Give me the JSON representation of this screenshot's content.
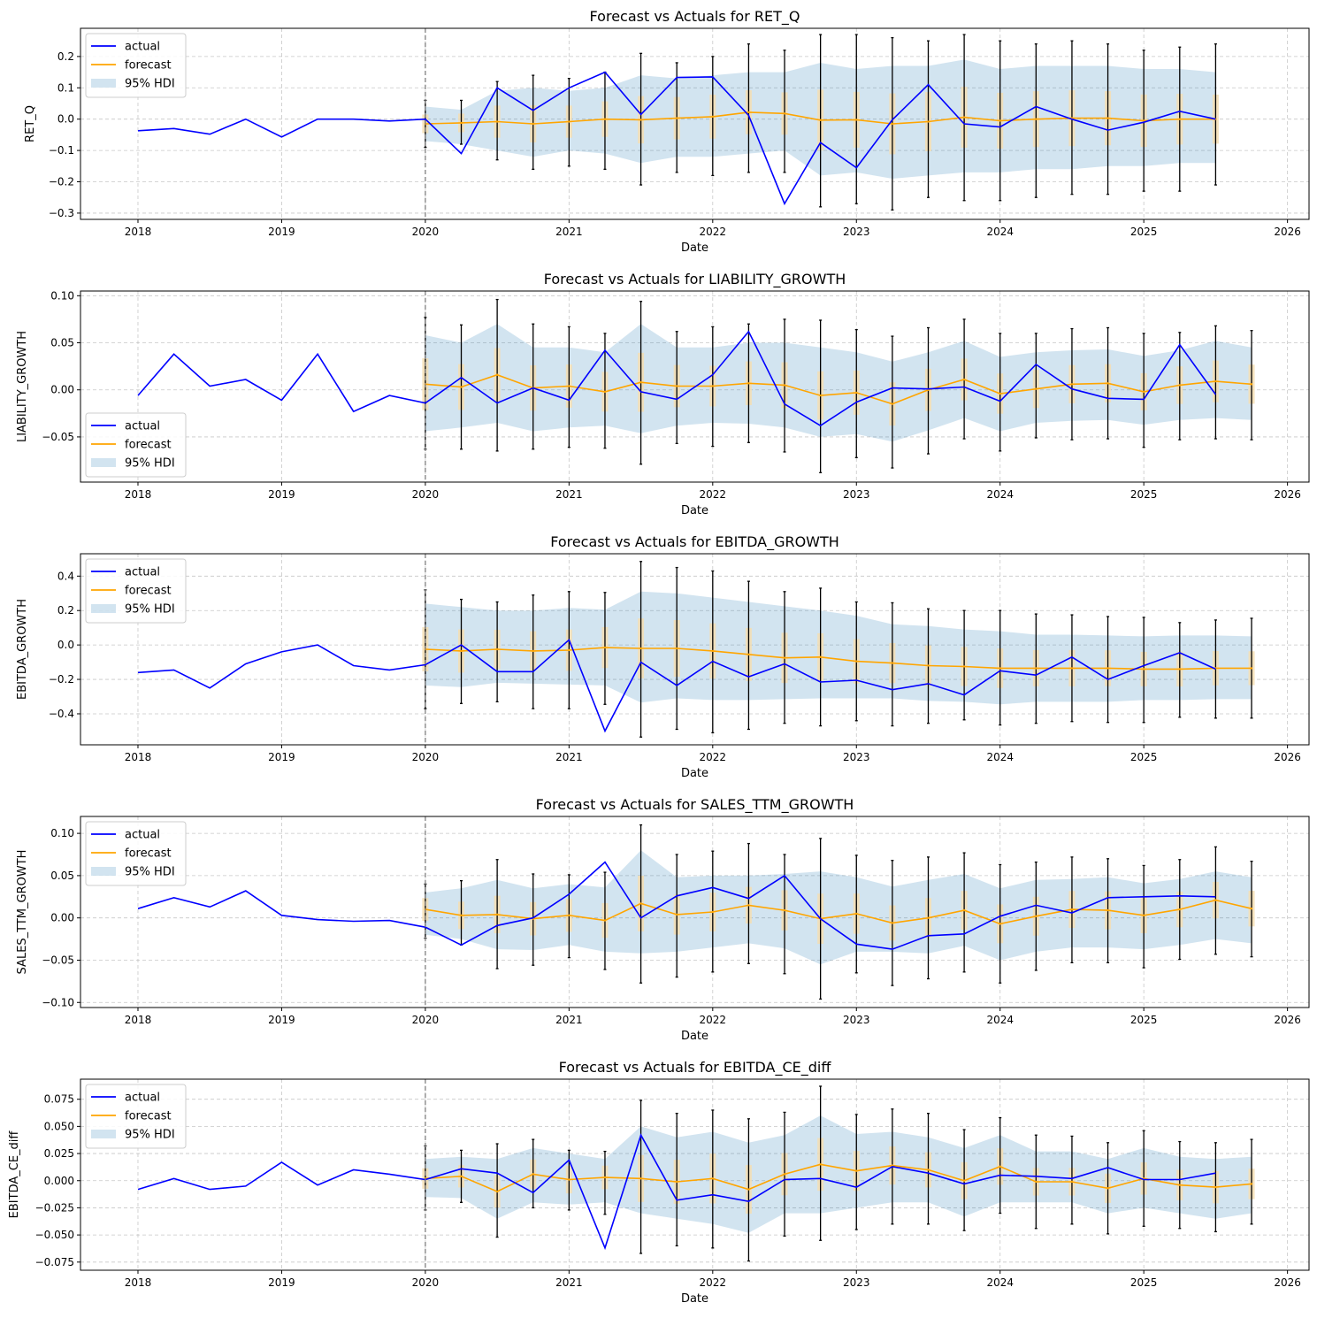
{
  "chart_data": [
    {
      "type": "line",
      "title": "Forecast vs Actuals for RET_Q",
      "xlabel": "Date",
      "ylabel": "RET_Q",
      "xlim": [
        2017.6,
        2026.15
      ],
      "ylim": [
        -0.32,
        0.29
      ],
      "yticks": [
        -0.3,
        -0.2,
        -0.1,
        0.0,
        0.1,
        0.2
      ],
      "ytick_labels": [
        "−0.3",
        "−0.2",
        "−0.1",
        "0.0",
        "0.1",
        "0.2"
      ],
      "legend_position": "top-left",
      "actual": [
        -0.037,
        -0.03,
        -0.048,
        0.0,
        -0.057,
        0.0,
        0.0,
        -0.006,
        0.0,
        -0.11,
        0.1,
        0.028,
        0.1,
        0.15,
        0.015,
        0.133,
        0.135,
        0.012,
        -0.27,
        -0.075,
        -0.155,
        -0.002,
        0.11,
        -0.015,
        -0.025,
        0.04,
        0.0,
        -0.035,
        -0.01,
        0.025,
        0.0
      ],
      "forecast": [
        -0.015,
        -0.012,
        -0.008,
        -0.015,
        -0.008,
        0.0,
        -0.002,
        0.003,
        0.008,
        0.022,
        0.018,
        -0.003,
        -0.002,
        -0.015,
        -0.008,
        0.006,
        -0.005,
        0.0,
        0.003,
        0.003,
        -0.005,
        0.0,
        0.0
      ],
      "hdi_low": [
        -0.07,
        -0.08,
        -0.1,
        -0.12,
        -0.1,
        -0.11,
        -0.14,
        -0.12,
        -0.12,
        -0.11,
        -0.1,
        -0.18,
        -0.17,
        -0.19,
        -0.18,
        -0.17,
        -0.17,
        -0.16,
        -0.16,
        -0.15,
        -0.15,
        -0.14,
        -0.14
      ],
      "hdi_high": [
        0.04,
        0.03,
        0.09,
        0.1,
        0.09,
        0.1,
        0.14,
        0.13,
        0.14,
        0.15,
        0.15,
        0.18,
        0.16,
        0.17,
        0.17,
        0.19,
        0.16,
        0.17,
        0.17,
        0.17,
        0.16,
        0.16,
        0.15
      ],
      "err_low": [
        -0.09,
        -0.08,
        -0.13,
        -0.16,
        -0.15,
        -0.16,
        -0.21,
        -0.17,
        -0.18,
        -0.17,
        -0.17,
        -0.28,
        -0.27,
        -0.29,
        -0.25,
        -0.26,
        -0.26,
        -0.25,
        -0.24,
        -0.24,
        -0.23,
        -0.23,
        -0.21
      ],
      "err_high": [
        0.06,
        0.06,
        0.12,
        0.14,
        0.13,
        0.15,
        0.21,
        0.18,
        0.2,
        0.24,
        0.22,
        0.27,
        0.27,
        0.26,
        0.25,
        0.27,
        0.25,
        0.24,
        0.25,
        0.24,
        0.22,
        0.23,
        0.24
      ]
    },
    {
      "type": "line",
      "title": "Forecast vs Actuals for LIABILITY_GROWTH",
      "xlabel": "Date",
      "ylabel": "LIABILITY_GROWTH",
      "xlim": [
        2017.6,
        2026.15
      ],
      "ylim": [
        -0.098,
        0.105
      ],
      "yticks": [
        -0.05,
        0.0,
        0.05,
        0.1
      ],
      "ytick_labels": [
        "−0.05",
        "0.00",
        "0.05",
        "0.10"
      ],
      "legend_position": "bottom-left",
      "actual": [
        -0.006,
        0.038,
        0.004,
        0.011,
        -0.011,
        0.038,
        -0.023,
        -0.006,
        -0.014,
        0.013,
        -0.014,
        0.002,
        -0.011,
        0.042,
        -0.002,
        -0.01,
        0.016,
        0.062,
        -0.015,
        -0.038,
        -0.013,
        0.002,
        0.001,
        0.003,
        -0.012,
        0.027,
        0.001,
        -0.009,
        -0.01,
        0.048,
        -0.005
      ],
      "forecast": [
        0.006,
        0.003,
        0.016,
        0.002,
        0.004,
        -0.002,
        0.008,
        0.004,
        0.004,
        0.007,
        0.005,
        -0.006,
        -0.003,
        -0.015,
        0.0,
        0.011,
        -0.004,
        0.001,
        0.006,
        0.007,
        -0.002,
        0.005,
        0.009,
        0.006
      ],
      "hdi_low": [
        -0.044,
        -0.04,
        -0.035,
        -0.044,
        -0.04,
        -0.038,
        -0.046,
        -0.038,
        -0.035,
        -0.036,
        -0.04,
        -0.05,
        -0.047,
        -0.055,
        -0.043,
        -0.03,
        -0.044,
        -0.035,
        -0.033,
        -0.032,
        -0.037,
        -0.032,
        -0.03,
        -0.032
      ],
      "hdi_high": [
        0.058,
        0.05,
        0.07,
        0.045,
        0.045,
        0.04,
        0.07,
        0.045,
        0.045,
        0.05,
        0.05,
        0.045,
        0.04,
        0.03,
        0.04,
        0.052,
        0.035,
        0.04,
        0.042,
        0.043,
        0.036,
        0.042,
        0.052,
        0.045
      ],
      "err_low": [
        -0.063,
        -0.063,
        -0.065,
        -0.063,
        -0.061,
        -0.062,
        -0.079,
        -0.057,
        -0.06,
        -0.056,
        -0.066,
        -0.088,
        -0.072,
        -0.083,
        -0.068,
        -0.052,
        -0.065,
        -0.051,
        -0.053,
        -0.052,
        -0.061,
        -0.053,
        -0.052,
        -0.053
      ],
      "err_high": [
        0.077,
        0.069,
        0.096,
        0.07,
        0.067,
        0.06,
        0.094,
        0.062,
        0.067,
        0.07,
        0.075,
        0.074,
        0.064,
        0.057,
        0.066,
        0.075,
        0.06,
        0.06,
        0.065,
        0.066,
        0.06,
        0.061,
        0.068,
        0.063
      ]
    },
    {
      "type": "line",
      "title": "Forecast vs Actuals for EBITDA_GROWTH",
      "xlabel": "Date",
      "ylabel": "EBITDA_GROWTH",
      "xlim": [
        2017.6,
        2026.15
      ],
      "ylim": [
        -0.58,
        0.53
      ],
      "yticks": [
        -0.4,
        -0.2,
        0.0,
        0.2,
        0.4
      ],
      "ytick_labels": [
        "−0.4",
        "−0.2",
        "0.0",
        "0.2",
        "0.4"
      ],
      "legend_position": "top-left",
      "actual": [
        -0.16,
        -0.145,
        -0.25,
        -0.11,
        -0.04,
        0.0,
        -0.12,
        -0.145,
        -0.115,
        0.0,
        -0.155,
        -0.155,
        0.03,
        -0.5,
        -0.1,
        -0.235,
        -0.095,
        -0.185,
        -0.11,
        -0.215,
        -0.205,
        -0.26,
        -0.225,
        -0.29,
        -0.15,
        -0.175,
        -0.07,
        -0.2,
        -0.12,
        -0.045,
        -0.14
      ],
      "forecast": [
        -0.025,
        -0.035,
        -0.025,
        -0.035,
        -0.03,
        -0.015,
        -0.02,
        -0.02,
        -0.035,
        -0.055,
        -0.075,
        -0.07,
        -0.095,
        -0.105,
        -0.12,
        -0.125,
        -0.135,
        -0.135,
        -0.135,
        -0.135,
        -0.14,
        -0.14,
        -0.135,
        -0.135
      ],
      "hdi_low": [
        -0.235,
        -0.245,
        -0.22,
        -0.225,
        -0.23,
        -0.235,
        -0.335,
        -0.31,
        -0.32,
        -0.32,
        -0.315,
        -0.31,
        -0.31,
        -0.31,
        -0.325,
        -0.33,
        -0.345,
        -0.33,
        -0.33,
        -0.33,
        -0.32,
        -0.32,
        -0.315,
        -0.315
      ],
      "hdi_high": [
        0.24,
        0.22,
        0.2,
        0.2,
        0.215,
        0.205,
        0.31,
        0.3,
        0.275,
        0.25,
        0.225,
        0.2,
        0.17,
        0.12,
        0.11,
        0.09,
        0.08,
        0.06,
        0.06,
        0.055,
        0.05,
        0.055,
        0.055,
        0.05
      ],
      "err_low": [
        -0.37,
        -0.34,
        -0.33,
        -0.37,
        -0.37,
        -0.345,
        -0.535,
        -0.49,
        -0.51,
        -0.49,
        -0.455,
        -0.47,
        -0.44,
        -0.47,
        -0.455,
        -0.435,
        -0.465,
        -0.455,
        -0.445,
        -0.45,
        -0.45,
        -0.42,
        -0.425,
        -0.425
      ],
      "err_high": [
        0.32,
        0.265,
        0.25,
        0.29,
        0.31,
        0.305,
        0.485,
        0.45,
        0.43,
        0.37,
        0.31,
        0.33,
        0.25,
        0.245,
        0.21,
        0.2,
        0.2,
        0.18,
        0.175,
        0.165,
        0.16,
        0.13,
        0.145,
        0.155
      ]
    },
    {
      "type": "line",
      "title": "Forecast vs Actuals for SALES_TTM_GROWTH",
      "xlabel": "Date",
      "ylabel": "SALES_TTM_GROWTH",
      "xlim": [
        2017.6,
        2026.15
      ],
      "ylim": [
        -0.106,
        0.12
      ],
      "yticks": [
        -0.1,
        -0.05,
        0.0,
        0.05,
        0.1
      ],
      "ytick_labels": [
        "−0.10",
        "−0.05",
        "0.00",
        "0.05",
        "0.10"
      ],
      "legend_position": "top-left",
      "actual": [
        0.011,
        0.024,
        0.013,
        0.032,
        0.003,
        -0.002,
        -0.004,
        -0.003,
        -0.011,
        -0.032,
        -0.009,
        0.0,
        0.028,
        0.066,
        0.0,
        0.026,
        0.036,
        0.023,
        0.05,
        -0.001,
        -0.031,
        -0.037,
        -0.021,
        -0.019,
        0.002,
        0.015,
        0.006,
        0.024,
        0.025,
        0.026,
        0.025
      ],
      "forecast": [
        0.01,
        0.003,
        0.004,
        -0.001,
        0.003,
        -0.003,
        0.017,
        0.004,
        0.007,
        0.015,
        0.009,
        -0.001,
        0.005,
        -0.006,
        0.0,
        0.009,
        -0.007,
        0.002,
        0.01,
        0.009,
        0.003,
        0.01,
        0.021,
        0.011
      ],
      "hdi_low": [
        -0.02,
        -0.025,
        -0.037,
        -0.038,
        -0.032,
        -0.04,
        -0.042,
        -0.04,
        -0.035,
        -0.03,
        -0.036,
        -0.055,
        -0.04,
        -0.04,
        -0.042,
        -0.033,
        -0.05,
        -0.04,
        -0.035,
        -0.035,
        -0.037,
        -0.032,
        -0.025,
        -0.03
      ],
      "hdi_high": [
        0.03,
        0.035,
        0.045,
        0.035,
        0.04,
        0.036,
        0.08,
        0.048,
        0.05,
        0.05,
        0.052,
        0.055,
        0.048,
        0.037,
        0.045,
        0.052,
        0.035,
        0.045,
        0.046,
        0.048,
        0.041,
        0.046,
        0.055,
        0.048
      ],
      "err_low": [
        -0.024,
        -0.032,
        -0.06,
        -0.056,
        -0.047,
        -0.061,
        -0.077,
        -0.07,
        -0.064,
        -0.054,
        -0.066,
        -0.096,
        -0.065,
        -0.08,
        -0.072,
        -0.064,
        -0.077,
        -0.062,
        -0.053,
        -0.053,
        -0.059,
        -0.049,
        -0.043,
        -0.046
      ],
      "err_high": [
        0.04,
        0.044,
        0.069,
        0.052,
        0.051,
        0.054,
        0.11,
        0.075,
        0.079,
        0.088,
        0.075,
        0.094,
        0.074,
        0.068,
        0.072,
        0.077,
        0.063,
        0.066,
        0.072,
        0.07,
        0.062,
        0.069,
        0.084,
        0.067
      ]
    },
    {
      "type": "line",
      "title": "Forecast vs Actuals for EBITDA_CE_diff",
      "xlabel": "Date",
      "ylabel": "EBITDA_CE_diff",
      "xlim": [
        2017.6,
        2026.15
      ],
      "ylim": [
        -0.0825,
        0.0935
      ],
      "yticks": [
        -0.075,
        -0.05,
        -0.025,
        0.0,
        0.025,
        0.05,
        0.075
      ],
      "ytick_labels": [
        "−0.075",
        "−0.050",
        "−0.025",
        "0.000",
        "0.025",
        "0.050",
        "0.075"
      ],
      "legend_position": "top-left",
      "actual": [
        -0.008,
        0.002,
        -0.008,
        -0.005,
        0.017,
        -0.004,
        0.01,
        0.006,
        0.001,
        0.011,
        0.007,
        -0.011,
        0.019,
        -0.062,
        0.042,
        -0.018,
        -0.013,
        -0.019,
        0.001,
        0.002,
        -0.006,
        0.013,
        0.007,
        -0.003,
        0.005,
        0.004,
        0.002,
        0.012,
        0.001,
        0.001,
        0.007
      ],
      "forecast": [
        0.002,
        0.004,
        -0.01,
        0.006,
        0.001,
        0.003,
        0.002,
        -0.001,
        0.002,
        -0.008,
        0.006,
        0.015,
        0.009,
        0.014,
        0.01,
        0.0,
        0.013,
        -0.001,
        -0.001,
        -0.007,
        0.002,
        -0.004,
        -0.006,
        -0.003
      ],
      "hdi_low": [
        -0.015,
        -0.016,
        -0.035,
        -0.02,
        -0.022,
        -0.02,
        -0.03,
        -0.035,
        -0.04,
        -0.048,
        -0.03,
        -0.03,
        -0.025,
        -0.02,
        -0.02,
        -0.033,
        -0.02,
        -0.02,
        -0.02,
        -0.03,
        -0.025,
        -0.03,
        -0.035,
        -0.03
      ],
      "hdi_high": [
        0.02,
        0.022,
        0.02,
        0.03,
        0.025,
        0.02,
        0.05,
        0.04,
        0.045,
        0.035,
        0.042,
        0.06,
        0.043,
        0.045,
        0.04,
        0.03,
        0.042,
        0.027,
        0.027,
        0.02,
        0.03,
        0.022,
        0.02,
        0.022
      ],
      "err_low": [
        -0.027,
        -0.02,
        -0.052,
        -0.025,
        -0.027,
        -0.031,
        -0.067,
        -0.06,
        -0.062,
        -0.074,
        -0.051,
        -0.055,
        -0.045,
        -0.04,
        -0.04,
        -0.046,
        -0.03,
        -0.044,
        -0.04,
        -0.049,
        -0.042,
        -0.044,
        -0.047,
        -0.04
      ],
      "err_high": [
        0.032,
        0.028,
        0.034,
        0.038,
        0.028,
        0.027,
        0.074,
        0.062,
        0.065,
        0.057,
        0.063,
        0.087,
        0.061,
        0.066,
        0.062,
        0.047,
        0.058,
        0.042,
        0.041,
        0.035,
        0.046,
        0.036,
        0.035,
        0.038
      ]
    }
  ],
  "axes_common": {
    "xticks": [
      2018,
      2019,
      2020,
      2021,
      2022,
      2023,
      2024,
      2025,
      2026
    ],
    "xtick_labels": [
      "2018",
      "2019",
      "2020",
      "2021",
      "2022",
      "2023",
      "2024",
      "2025",
      "2026"
    ],
    "actual_start": 2018.0,
    "forecast_start": 2020.0,
    "step": 0.25,
    "cutoff_date": 2020.0
  },
  "legend": {
    "actual": "actual",
    "forecast": "forecast",
    "hdi": "95% HDI"
  },
  "colors": {
    "actual": "#0000ff",
    "forecast": "#ffa500",
    "hdi": "#1f77b4",
    "error_bar": "#000000",
    "cutoff": "#808080",
    "grid": "#b0b0b0"
  }
}
